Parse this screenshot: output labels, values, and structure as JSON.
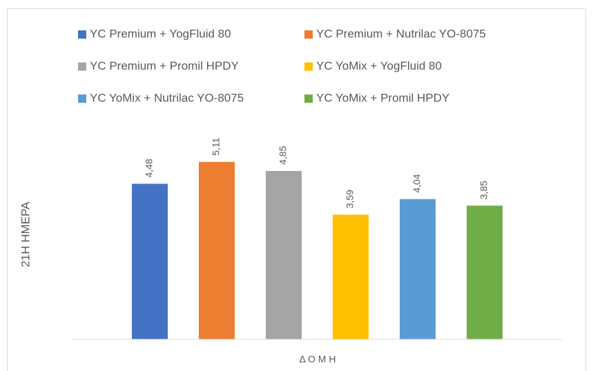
{
  "chart_data": {
    "type": "bar",
    "y_label": "21Η ΗΜΕΡΑ",
    "x_label": "Δ Ο Μ Η",
    "ylim": [
      0,
      6
    ],
    "series": [
      {
        "name": "YC Premium + YogFluid 80",
        "color": "#4472c4",
        "values": [
          4.48
        ],
        "value_labels": [
          "4,48"
        ]
      },
      {
        "name": "YC Premium + Nutrilac YO-8075",
        "color": "#ed7d31",
        "values": [
          5.11
        ],
        "value_labels": [
          "5,11"
        ]
      },
      {
        "name": "YC Premium + Promil HPDY",
        "color": "#a5a5a5",
        "values": [
          4.85
        ],
        "value_labels": [
          "4,85"
        ]
      },
      {
        "name": "YC YoMix + YogFluid 80",
        "color": "#ffc000",
        "values": [
          3.59
        ],
        "value_labels": [
          "3,59"
        ]
      },
      {
        "name": "YC YoMix + Nutrilac YO-8075",
        "color": "#5b9bd5",
        "values": [
          4.04
        ],
        "value_labels": [
          "4,04"
        ]
      },
      {
        "name": "YC YoMix + Promil HPDY",
        "color": "#70ad47",
        "values": [
          3.85
        ],
        "value_labels": [
          "3,85"
        ]
      }
    ]
  }
}
